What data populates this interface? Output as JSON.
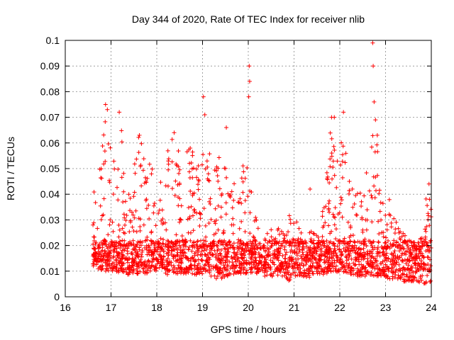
{
  "chart_data": {
    "type": "scatter",
    "title": "Day 344 of 2020, Rate Of TEC Index for receiver nlib",
    "xlabel": "GPS time / hours",
    "ylabel": "ROTI / TECUs",
    "xlim": [
      16,
      24
    ],
    "ylim": [
      0,
      0.1
    ],
    "x_ticks": [
      16,
      17,
      18,
      19,
      20,
      21,
      22,
      23,
      24
    ],
    "x_tick_labels": [
      "16",
      "17",
      "18",
      "19",
      "20",
      "21",
      "22",
      "23",
      "24"
    ],
    "y_ticks": [
      0,
      0.01,
      0.02,
      0.03,
      0.04,
      0.05,
      0.06,
      0.07,
      0.08,
      0.09,
      0.1
    ],
    "y_tick_labels": [
      "0",
      "0.01",
      "0.02",
      "0.03",
      "0.04",
      "0.05",
      "0.06",
      "0.07",
      "0.08",
      "0.09",
      "0.1"
    ],
    "grid": true,
    "marker": "+",
    "color": "#ff0000",
    "series": [
      {
        "name": "ROTI",
        "envelope": [
          [
            16.6,
            0.012,
            0.04
          ],
          [
            16.7,
            0.011,
            0.046
          ],
          [
            16.8,
            0.01,
            0.062
          ],
          [
            16.9,
            0.01,
            0.075
          ],
          [
            17.0,
            0.01,
            0.058
          ],
          [
            17.1,
            0.01,
            0.066
          ],
          [
            17.2,
            0.009,
            0.072
          ],
          [
            17.3,
            0.009,
            0.05
          ],
          [
            17.4,
            0.008,
            0.04
          ],
          [
            17.5,
            0.009,
            0.052
          ],
          [
            17.6,
            0.009,
            0.063
          ],
          [
            17.7,
            0.009,
            0.062
          ],
          [
            17.8,
            0.009,
            0.05
          ],
          [
            17.9,
            0.01,
            0.055
          ],
          [
            18.0,
            0.009,
            0.053
          ],
          [
            18.1,
            0.009,
            0.048
          ],
          [
            18.2,
            0.008,
            0.058
          ],
          [
            18.3,
            0.009,
            0.064
          ],
          [
            18.4,
            0.009,
            0.062
          ],
          [
            18.5,
            0.009,
            0.055
          ],
          [
            18.6,
            0.009,
            0.058
          ],
          [
            18.7,
            0.009,
            0.06
          ],
          [
            18.8,
            0.009,
            0.057
          ],
          [
            18.9,
            0.008,
            0.055
          ],
          [
            19.0,
            0.009,
            0.071
          ],
          [
            19.1,
            0.008,
            0.06
          ],
          [
            19.2,
            0.008,
            0.058
          ],
          [
            19.3,
            0.007,
            0.05
          ],
          [
            19.4,
            0.007,
            0.057
          ],
          [
            19.5,
            0.008,
            0.063
          ],
          [
            19.6,
            0.008,
            0.054
          ],
          [
            19.7,
            0.009,
            0.045
          ],
          [
            19.8,
            0.009,
            0.038
          ],
          [
            19.9,
            0.009,
            0.056
          ],
          [
            20.0,
            0.009,
            0.06
          ],
          [
            20.1,
            0.009,
            0.035
          ],
          [
            20.2,
            0.009,
            0.03
          ],
          [
            20.3,
            0.008,
            0.025
          ],
          [
            20.4,
            0.008,
            0.028
          ],
          [
            20.5,
            0.008,
            0.03
          ],
          [
            20.6,
            0.008,
            0.025
          ],
          [
            20.7,
            0.008,
            0.028
          ],
          [
            20.8,
            0.008,
            0.026
          ],
          [
            20.9,
            0.006,
            0.033
          ],
          [
            21.0,
            0.008,
            0.03
          ],
          [
            21.1,
            0.008,
            0.029
          ],
          [
            21.2,
            0.008,
            0.027
          ],
          [
            21.3,
            0.007,
            0.025
          ],
          [
            21.4,
            0.008,
            0.026
          ],
          [
            21.5,
            0.008,
            0.03
          ],
          [
            21.6,
            0.008,
            0.032
          ],
          [
            21.7,
            0.009,
            0.045
          ],
          [
            21.8,
            0.009,
            0.068
          ],
          [
            21.9,
            0.009,
            0.055
          ],
          [
            22.0,
            0.009,
            0.065
          ],
          [
            22.1,
            0.009,
            0.07
          ],
          [
            22.2,
            0.009,
            0.05
          ],
          [
            22.3,
            0.008,
            0.045
          ],
          [
            22.4,
            0.008,
            0.04
          ],
          [
            22.5,
            0.008,
            0.045
          ],
          [
            22.6,
            0.008,
            0.05
          ],
          [
            22.7,
            0.008,
            0.062
          ],
          [
            22.8,
            0.008,
            0.068
          ],
          [
            22.9,
            0.008,
            0.045
          ],
          [
            23.0,
            0.007,
            0.035
          ],
          [
            23.1,
            0.007,
            0.04
          ],
          [
            23.2,
            0.007,
            0.038
          ],
          [
            23.3,
            0.007,
            0.03
          ],
          [
            23.4,
            0.006,
            0.025
          ],
          [
            23.5,
            0.006,
            0.024
          ],
          [
            23.6,
            0.006,
            0.023
          ],
          [
            23.7,
            0.006,
            0.022
          ],
          [
            23.8,
            0.005,
            0.024
          ],
          [
            23.9,
            0.005,
            0.042
          ],
          [
            24.0,
            0.006,
            0.04
          ]
        ],
        "outliers": [
          [
            16.88,
            0.075
          ],
          [
            16.92,
            0.073
          ],
          [
            17.18,
            0.072
          ],
          [
            17.62,
            0.063
          ],
          [
            18.38,
            0.064
          ],
          [
            19.02,
            0.078
          ],
          [
            19.05,
            0.071
          ],
          [
            19.52,
            0.066
          ],
          [
            20.02,
            0.09
          ],
          [
            20.03,
            0.084
          ],
          [
            20.01,
            0.078
          ],
          [
            21.35,
            0.042
          ],
          [
            21.82,
            0.07
          ],
          [
            21.88,
            0.07
          ],
          [
            22.08,
            0.072
          ],
          [
            22.72,
            0.099
          ],
          [
            22.73,
            0.09
          ],
          [
            22.75,
            0.076
          ],
          [
            22.78,
            0.069
          ],
          [
            22.82,
            0.063
          ],
          [
            23.95,
            0.044
          ],
          [
            23.96,
            0.038
          ]
        ]
      }
    ]
  }
}
